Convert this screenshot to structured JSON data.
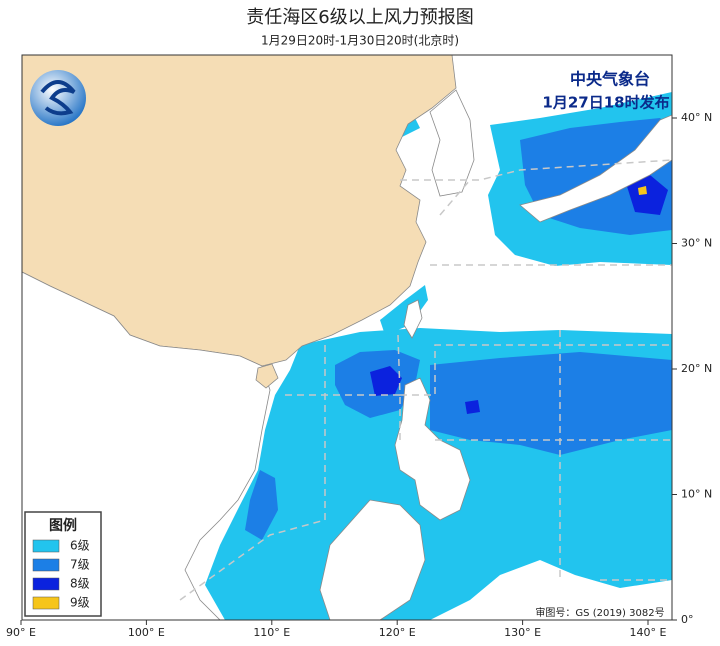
{
  "header": {
    "title": "责任海区6级以上风力预报图",
    "subtitle": "1月29日20时-1月30日20时(北京时)"
  },
  "issuer": {
    "agency": "中央气象台",
    "issued": "1月27日18时发布"
  },
  "legend": {
    "title": "图例",
    "items": [
      {
        "label": "6级",
        "color": "#22c4ee"
      },
      {
        "label": "7级",
        "color": "#1c7fe6"
      },
      {
        "label": "8级",
        "color": "#0b22de"
      },
      {
        "label": "9级",
        "color": "#f6c51a"
      }
    ]
  },
  "axes": {
    "lon_labels": [
      "90° E",
      "100° E",
      "110° E",
      "120° E",
      "130° E",
      "140° E"
    ],
    "lat_labels": [
      "40° N",
      "30° N",
      "20° N",
      "10° N",
      "0°"
    ]
  },
  "footer": {
    "review_number": "审图号：GS (2019) 3082号"
  }
}
